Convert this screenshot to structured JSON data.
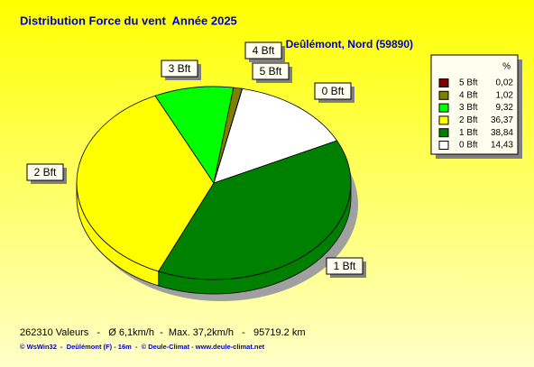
{
  "chart_data": {
    "type": "pie",
    "title": "Distribution Force du vent  Année 2025",
    "subtitle": "Deûlémont, Nord (59890)",
    "legend_header": "%",
    "categories": [
      "5 Bft",
      "4 Bft",
      "3 Bft",
      "2 Bft",
      "1 Bft",
      "0 Bft"
    ],
    "values": [
      0.02,
      1.02,
      9.32,
      36.37,
      38.84,
      14.43
    ],
    "value_labels": [
      "0,02",
      "1,02",
      "9,32",
      "36,37",
      "38,84",
      "14,43"
    ],
    "colors": [
      "#800000",
      "#808000",
      "#00ff00",
      "#ffff00",
      "#008000",
      "#ffffff"
    ],
    "legend": "upper right",
    "footer": "262310 Valeurs   -   Ø 6,1km/h  -  Max. 37,2km/h   -   95719.2 km",
    "credit": "© WsWin32  -  Deûlémont (F) - 16m  -  © Deule-Climat - www.deule-climat.net"
  }
}
